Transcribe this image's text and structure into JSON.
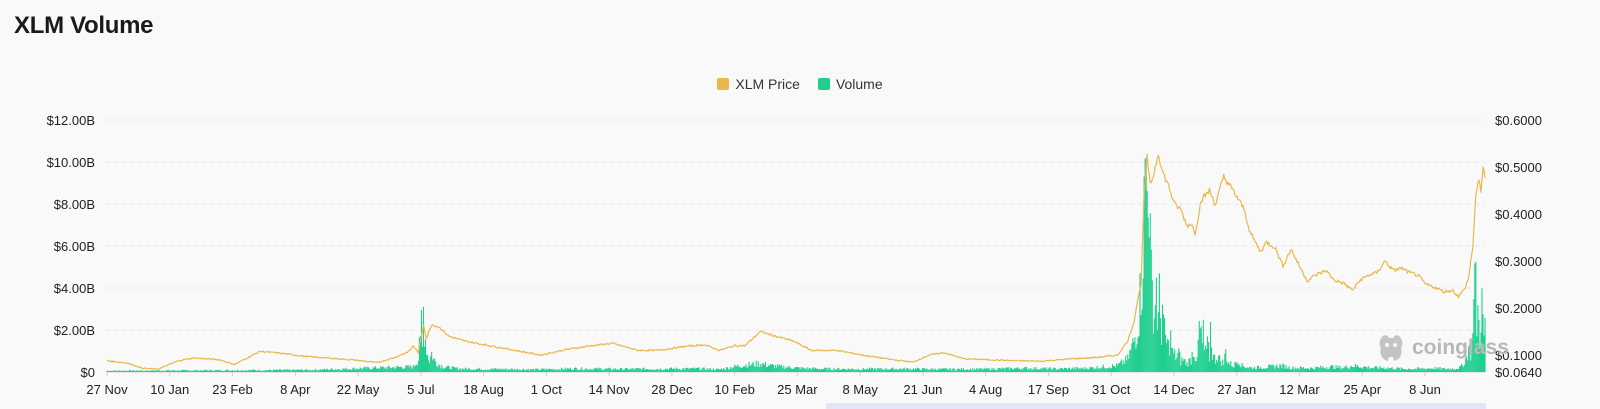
{
  "page": {
    "title": "XLM Volume"
  },
  "watermark": {
    "text": "coinglass",
    "icon": "coinglass-logo-icon"
  },
  "colors": {
    "price": "#eab84a",
    "volume": "#1fcf8e",
    "grid": "#e6e6e6"
  },
  "chart_data": {
    "type": "bar",
    "title": "",
    "legend": {
      "placement": "top-center",
      "entries": [
        "XLM Price",
        "Volume"
      ]
    },
    "x_tick_labels": [
      "27 Nov",
      "10 Jan",
      "23 Feb",
      "8 Apr",
      "22 May",
      "5 Jul",
      "18 Aug",
      "1 Oct",
      "14 Nov",
      "28 Dec",
      "10 Feb",
      "25 Mar",
      "8 May",
      "21 Jun",
      "4 Aug",
      "17 Sep",
      "31 Oct",
      "14 Dec",
      "27 Jan",
      "12 Mar",
      "25 Apr",
      "8 Jun"
    ],
    "y_left": {
      "label": "",
      "ticks": [
        "$0",
        "$2.00B",
        "$4.00B",
        "$6.00B",
        "$8.00B",
        "$10.00B",
        "$12.00B"
      ],
      "range": [
        0,
        12
      ]
    },
    "y_right": {
      "label": "",
      "ticks": [
        "$0.0640",
        "$0.1000",
        "$0.2000",
        "$0.3000",
        "$0.4000",
        "$0.5000",
        "$0.6000"
      ],
      "range": [
        0.064,
        0.6
      ]
    },
    "grid": true,
    "series": [
      {
        "name": "XLM Price",
        "type": "line",
        "axis": "right",
        "points": [
          [
            0,
            0.088
          ],
          [
            20,
            0.083
          ],
          [
            35,
            0.072
          ],
          [
            50,
            0.07
          ],
          [
            70,
            0.088
          ],
          [
            85,
            0.094
          ],
          [
            110,
            0.09
          ],
          [
            125,
            0.08
          ],
          [
            150,
            0.108
          ],
          [
            170,
            0.104
          ],
          [
            195,
            0.097
          ],
          [
            215,
            0.094
          ],
          [
            240,
            0.09
          ],
          [
            265,
            0.084
          ],
          [
            282,
            0.095
          ],
          [
            296,
            0.108
          ],
          [
            300,
            0.12
          ],
          [
            305,
            0.105
          ],
          [
            310,
            0.165
          ],
          [
            313,
            0.135
          ],
          [
            318,
            0.165
          ],
          [
            325,
            0.16
          ],
          [
            335,
            0.14
          ],
          [
            350,
            0.13
          ],
          [
            375,
            0.12
          ],
          [
            400,
            0.11
          ],
          [
            425,
            0.1
          ],
          [
            450,
            0.112
          ],
          [
            475,
            0.12
          ],
          [
            495,
            0.125
          ],
          [
            520,
            0.11
          ],
          [
            540,
            0.11
          ],
          [
            565,
            0.118
          ],
          [
            585,
            0.122
          ],
          [
            600,
            0.11
          ],
          [
            615,
            0.12
          ],
          [
            625,
            0.12
          ],
          [
            640,
            0.15
          ],
          [
            655,
            0.14
          ],
          [
            672,
            0.13
          ],
          [
            690,
            0.11
          ],
          [
            715,
            0.11
          ],
          [
            740,
            0.1
          ],
          [
            770,
            0.09
          ],
          [
            790,
            0.085
          ],
          [
            805,
            0.1
          ],
          [
            820,
            0.105
          ],
          [
            840,
            0.092
          ],
          [
            865,
            0.09
          ],
          [
            890,
            0.088
          ],
          [
            915,
            0.087
          ],
          [
            945,
            0.092
          ],
          [
            970,
            0.095
          ],
          [
            990,
            0.1
          ],
          [
            1000,
            0.13
          ],
          [
            1006,
            0.17
          ],
          [
            1010,
            0.22
          ],
          [
            1013,
            0.25
          ],
          [
            1016,
            0.44
          ],
          [
            1019,
            0.52
          ],
          [
            1022,
            0.46
          ],
          [
            1026,
            0.49
          ],
          [
            1030,
            0.53
          ],
          [
            1034,
            0.49
          ],
          [
            1040,
            0.46
          ],
          [
            1046,
            0.42
          ],
          [
            1052,
            0.41
          ],
          [
            1058,
            0.375
          ],
          [
            1062,
            0.38
          ],
          [
            1066,
            0.36
          ],
          [
            1072,
            0.43
          ],
          [
            1080,
            0.45
          ],
          [
            1086,
            0.42
          ],
          [
            1094,
            0.48
          ],
          [
            1100,
            0.46
          ],
          [
            1106,
            0.44
          ],
          [
            1114,
            0.41
          ],
          [
            1120,
            0.36
          ],
          [
            1130,
            0.32
          ],
          [
            1136,
            0.34
          ],
          [
            1144,
            0.33
          ],
          [
            1152,
            0.29
          ],
          [
            1160,
            0.325
          ],
          [
            1168,
            0.29
          ],
          [
            1176,
            0.258
          ],
          [
            1184,
            0.27
          ],
          [
            1194,
            0.28
          ],
          [
            1202,
            0.26
          ],
          [
            1212,
            0.252
          ],
          [
            1220,
            0.238
          ],
          [
            1228,
            0.26
          ],
          [
            1236,
            0.27
          ],
          [
            1244,
            0.275
          ],
          [
            1252,
            0.3
          ],
          [
            1260,
            0.28
          ],
          [
            1268,
            0.285
          ],
          [
            1276,
            0.275
          ],
          [
            1284,
            0.27
          ],
          [
            1292,
            0.25
          ],
          [
            1300,
            0.245
          ],
          [
            1310,
            0.235
          ],
          [
            1318,
            0.238
          ],
          [
            1324,
            0.225
          ],
          [
            1330,
            0.24
          ],
          [
            1334,
            0.265
          ],
          [
            1338,
            0.33
          ],
          [
            1341,
            0.44
          ],
          [
            1344,
            0.47
          ],
          [
            1346,
            0.45
          ],
          [
            1348,
            0.5
          ],
          [
            1350,
            0.48
          ]
        ]
      },
      {
        "name": "Volume",
        "type": "bar",
        "axis": "left",
        "points": [
          [
            0,
            0.06
          ],
          [
            100,
            0.08
          ],
          [
            200,
            0.1
          ],
          [
            300,
            0.25
          ],
          [
            305,
            0.6
          ],
          [
            306,
            1.9
          ],
          [
            307,
            1.2
          ],
          [
            308,
            2.3
          ],
          [
            309,
            1.1
          ],
          [
            310,
            3.0
          ],
          [
            311,
            2.0
          ],
          [
            312,
            1.6
          ],
          [
            314,
            0.8
          ],
          [
            316,
            0.55
          ],
          [
            318,
            0.9
          ],
          [
            320,
            0.6
          ],
          [
            322,
            0.5
          ],
          [
            325,
            0.35
          ],
          [
            330,
            0.25
          ],
          [
            340,
            0.18
          ],
          [
            350,
            0.15
          ],
          [
            380,
            0.14
          ],
          [
            420,
            0.12
          ],
          [
            460,
            0.16
          ],
          [
            500,
            0.14
          ],
          [
            540,
            0.15
          ],
          [
            580,
            0.16
          ],
          [
            600,
            0.12
          ],
          [
            620,
            0.3
          ],
          [
            630,
            0.35
          ],
          [
            640,
            0.4
          ],
          [
            650,
            0.3
          ],
          [
            660,
            0.25
          ],
          [
            680,
            0.18
          ],
          [
            700,
            0.15
          ],
          [
            740,
            0.14
          ],
          [
            780,
            0.15
          ],
          [
            820,
            0.13
          ],
          [
            860,
            0.14
          ],
          [
            900,
            0.18
          ],
          [
            930,
            0.15
          ],
          [
            960,
            0.18
          ],
          [
            990,
            0.3
          ],
          [
            1000,
            0.6
          ],
          [
            1005,
            1.3
          ],
          [
            1008,
            1.8
          ],
          [
            1010,
            2.3
          ],
          [
            1012,
            3.5
          ],
          [
            1014,
            4.6
          ],
          [
            1016,
            7.5
          ],
          [
            1018,
            10.2
          ],
          [
            1019,
            8.5
          ],
          [
            1020,
            11.0
          ],
          [
            1021,
            9.0
          ],
          [
            1022,
            6.0
          ],
          [
            1023,
            4.2
          ],
          [
            1024,
            3.8
          ],
          [
            1025,
            3.3
          ],
          [
            1026,
            2.6
          ],
          [
            1027,
            3.6
          ],
          [
            1028,
            4.2
          ],
          [
            1029,
            2.8
          ],
          [
            1030,
            2.4
          ],
          [
            1031,
            3.4
          ],
          [
            1032,
            2.6
          ],
          [
            1033,
            2.0
          ],
          [
            1034,
            3.3
          ],
          [
            1035,
            2.2
          ],
          [
            1036,
            1.8
          ],
          [
            1038,
            1.4
          ],
          [
            1040,
            1.2
          ],
          [
            1042,
            1.6
          ],
          [
            1044,
            0.9
          ],
          [
            1046,
            0.8
          ],
          [
            1048,
            0.7
          ],
          [
            1050,
            0.9
          ],
          [
            1052,
            0.5
          ],
          [
            1054,
            0.6
          ],
          [
            1058,
            0.4
          ],
          [
            1062,
            0.6
          ],
          [
            1064,
            1.1
          ],
          [
            1066,
            0.8
          ],
          [
            1068,
            0.5
          ],
          [
            1070,
            2.2
          ],
          [
            1071,
            1.7
          ],
          [
            1072,
            1.9
          ],
          [
            1073,
            1.3
          ],
          [
            1074,
            1.8
          ],
          [
            1075,
            1.0
          ],
          [
            1076,
            1.2
          ],
          [
            1077,
            0.8
          ],
          [
            1078,
            1.4
          ],
          [
            1079,
            1.0
          ],
          [
            1080,
            0.7
          ],
          [
            1081,
            2.1
          ],
          [
            1082,
            1.5
          ],
          [
            1083,
            0.9
          ],
          [
            1084,
            0.7
          ],
          [
            1086,
            0.6
          ],
          [
            1088,
            0.8
          ],
          [
            1090,
            0.6
          ],
          [
            1092,
            0.5
          ],
          [
            1094,
            0.4
          ],
          [
            1096,
            1.0
          ],
          [
            1098,
            0.5
          ],
          [
            1100,
            0.4
          ],
          [
            1104,
            0.3
          ],
          [
            1108,
            0.6
          ],
          [
            1112,
            0.3
          ],
          [
            1116,
            0.25
          ],
          [
            1120,
            0.2
          ],
          [
            1130,
            0.22
          ],
          [
            1140,
            0.25
          ],
          [
            1150,
            0.3
          ],
          [
            1160,
            0.2
          ],
          [
            1170,
            0.2
          ],
          [
            1180,
            0.18
          ],
          [
            1190,
            0.22
          ],
          [
            1200,
            0.25
          ],
          [
            1210,
            0.2
          ],
          [
            1220,
            0.3
          ],
          [
            1230,
            0.25
          ],
          [
            1240,
            0.2
          ],
          [
            1250,
            0.2
          ],
          [
            1260,
            0.18
          ],
          [
            1270,
            0.15
          ],
          [
            1280,
            0.15
          ],
          [
            1290,
            0.16
          ],
          [
            1300,
            0.18
          ],
          [
            1310,
            0.15
          ],
          [
            1320,
            0.16
          ],
          [
            1325,
            0.2
          ],
          [
            1328,
            0.3
          ],
          [
            1330,
            0.5
          ],
          [
            1332,
            0.7
          ],
          [
            1334,
            1.2
          ],
          [
            1336,
            0.9
          ],
          [
            1337,
            1.3
          ],
          [
            1338,
            2.8
          ],
          [
            1339,
            3.1
          ],
          [
            1340,
            4.7
          ],
          [
            1341,
            3.8
          ],
          [
            1342,
            2.4
          ],
          [
            1343,
            2.9
          ],
          [
            1344,
            2.2
          ],
          [
            1345,
            1.7
          ],
          [
            1346,
            2.8
          ],
          [
            1347,
            3.4
          ],
          [
            1348,
            2.1
          ],
          [
            1349,
            1.6
          ],
          [
            1350,
            2.6
          ]
        ]
      }
    ]
  }
}
